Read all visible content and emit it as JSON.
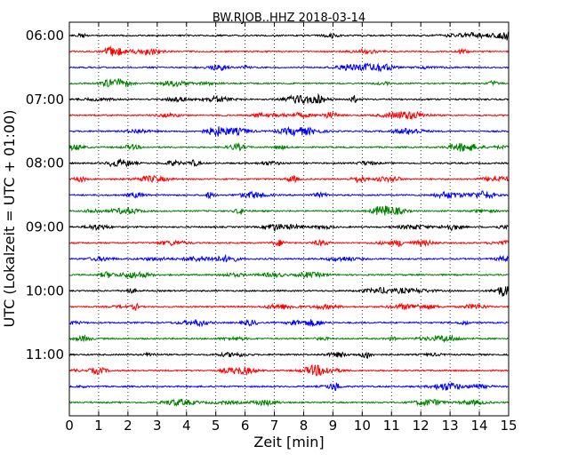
{
  "chart_data": {
    "type": "line",
    "title": "BW.RJOB..HHZ 2018-03-14",
    "xlabel": "Zeit  [min]",
    "ylabel": "UTC (Lokalzeit = UTC + 01:00)",
    "x_ticks": [
      "0",
      "1",
      "2",
      "3",
      "4",
      "5",
      "6",
      "7",
      "8",
      "9",
      "10",
      "11",
      "12",
      "13",
      "14",
      "15"
    ],
    "xlim": [
      0,
      15
    ],
    "y_ticks": [
      "06:00",
      "07:00",
      "08:00",
      "09:00",
      "10:00",
      "11:00"
    ],
    "trace_start": "06:00",
    "trace_interval_minutes": 15,
    "trace_count": 24,
    "trace_colors": [
      "#000000",
      "#ff0000",
      "#0000ff",
      "#008000"
    ],
    "grid": "vertical dotted"
  }
}
